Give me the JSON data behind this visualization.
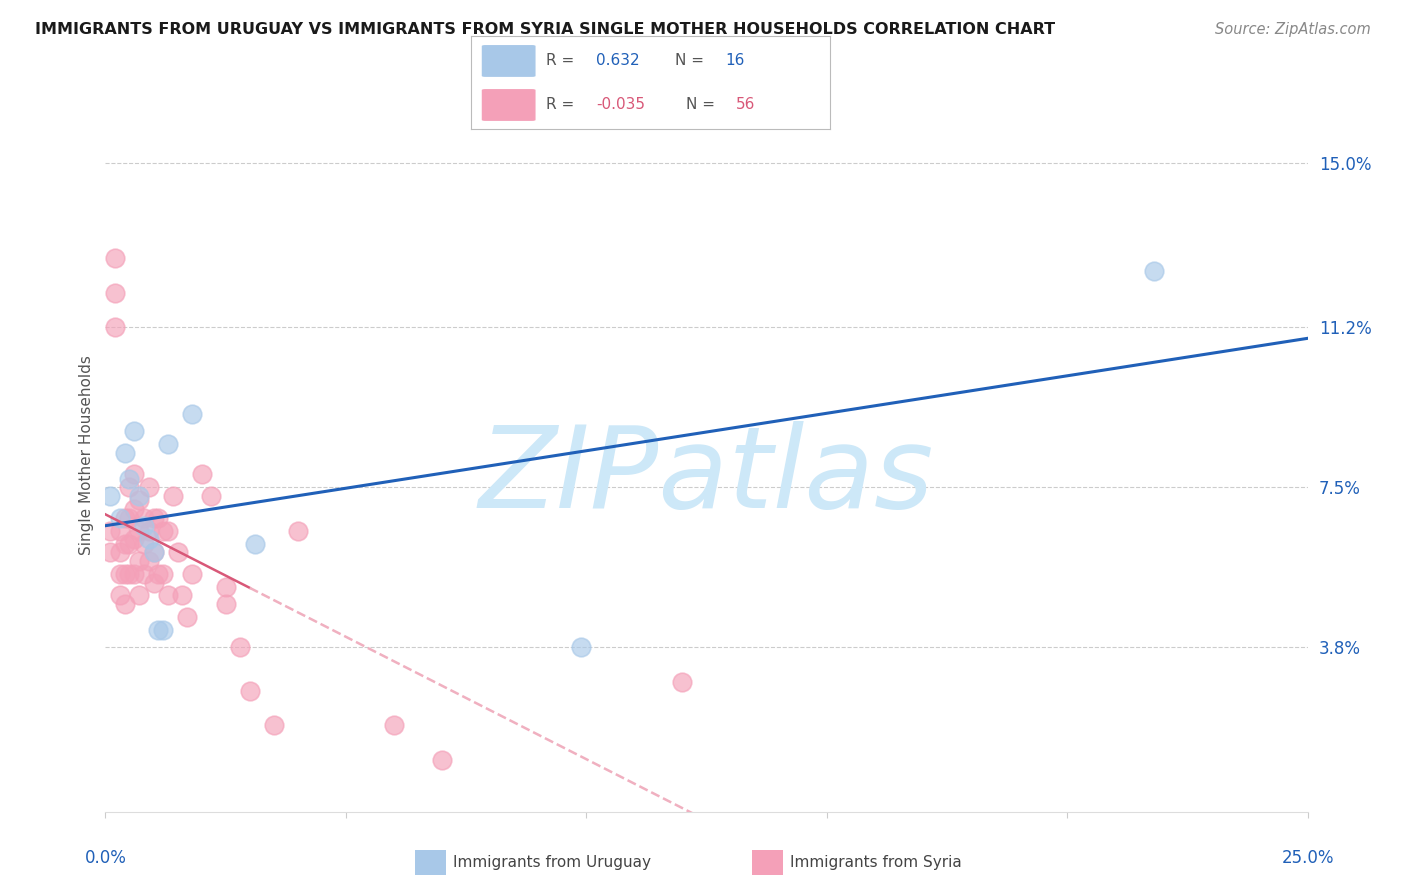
{
  "title": "IMMIGRANTS FROM URUGUAY VS IMMIGRANTS FROM SYRIA SINGLE MOTHER HOUSEHOLDS CORRELATION CHART",
  "source": "Source: ZipAtlas.com",
  "ylabel": "Single Mother Households",
  "ytick_labels": [
    "3.8%",
    "7.5%",
    "11.2%",
    "15.0%"
  ],
  "ytick_values": [
    0.038,
    0.075,
    0.112,
    0.15
  ],
  "xmin": 0.0,
  "xmax": 0.25,
  "ymin": 0.0,
  "ymax": 0.165,
  "r_uruguay": "0.632",
  "n_uruguay": "16",
  "r_syria": "-0.035",
  "n_syria": "56",
  "uruguay_dot_color": "#a8c8e8",
  "syria_dot_color": "#f4a0b8",
  "uruguay_line_color": "#2060b8",
  "syria_solid_color": "#d85878",
  "syria_dash_color": "#f0b0c0",
  "watermark_color": "#cde8f8",
  "uruguay_points_x": [
    0.001,
    0.003,
    0.004,
    0.005,
    0.006,
    0.007,
    0.008,
    0.009,
    0.01,
    0.011,
    0.012,
    0.013,
    0.018,
    0.031,
    0.099,
    0.218
  ],
  "uruguay_points_y": [
    0.073,
    0.068,
    0.083,
    0.077,
    0.088,
    0.073,
    0.066,
    0.063,
    0.06,
    0.042,
    0.042,
    0.085,
    0.092,
    0.062,
    0.038,
    0.125
  ],
  "syria_points_x": [
    0.001,
    0.001,
    0.002,
    0.002,
    0.002,
    0.003,
    0.003,
    0.003,
    0.003,
    0.004,
    0.004,
    0.004,
    0.004,
    0.005,
    0.005,
    0.005,
    0.005,
    0.006,
    0.006,
    0.006,
    0.006,
    0.007,
    0.007,
    0.007,
    0.007,
    0.008,
    0.008,
    0.008,
    0.009,
    0.009,
    0.009,
    0.01,
    0.01,
    0.01,
    0.011,
    0.011,
    0.012,
    0.012,
    0.013,
    0.013,
    0.014,
    0.015,
    0.016,
    0.017,
    0.018,
    0.02,
    0.022,
    0.025,
    0.025,
    0.028,
    0.03,
    0.035,
    0.04,
    0.06,
    0.07,
    0.12
  ],
  "syria_points_y": [
    0.065,
    0.06,
    0.128,
    0.12,
    0.112,
    0.065,
    0.06,
    0.055,
    0.05,
    0.068,
    0.062,
    0.055,
    0.048,
    0.075,
    0.068,
    0.062,
    0.055,
    0.078,
    0.07,
    0.063,
    0.055,
    0.072,
    0.065,
    0.058,
    0.05,
    0.068,
    0.062,
    0.055,
    0.075,
    0.065,
    0.058,
    0.068,
    0.06,
    0.053,
    0.068,
    0.055,
    0.065,
    0.055,
    0.065,
    0.05,
    0.073,
    0.06,
    0.05,
    0.045,
    0.055,
    0.078,
    0.073,
    0.052,
    0.048,
    0.038,
    0.028,
    0.02,
    0.065,
    0.02,
    0.012,
    0.03
  ]
}
